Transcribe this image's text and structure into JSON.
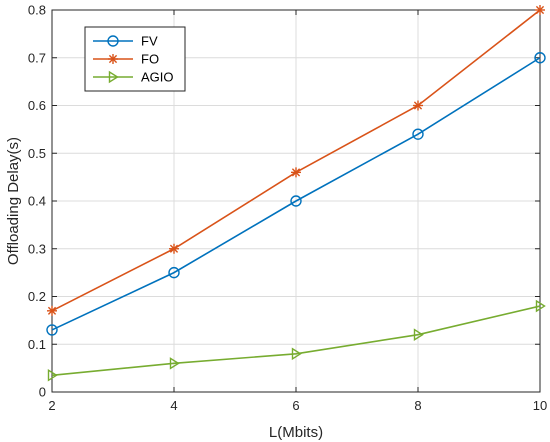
{
  "chart_data": {
    "type": "line",
    "xlabel": "L(Mbits)",
    "ylabel": "Offloading Delay(s)",
    "x": [
      2,
      4,
      6,
      8,
      10
    ],
    "xlim": [
      2,
      10
    ],
    "ylim": [
      0,
      0.8
    ],
    "xticks": [
      "2",
      "4",
      "6",
      "8",
      "10"
    ],
    "yticks": [
      "0",
      "0.1",
      "0.2",
      "0.3",
      "0.4",
      "0.5",
      "0.6",
      "0.7",
      "0.8"
    ],
    "grid": true,
    "legend_position": "top-left",
    "series": [
      {
        "name": "FV",
        "values": [
          0.13,
          0.25,
          0.4,
          0.54,
          0.7
        ],
        "color": "#0072BD",
        "marker": "circle"
      },
      {
        "name": "FO",
        "values": [
          0.17,
          0.3,
          0.46,
          0.6,
          0.8
        ],
        "color": "#D95319",
        "marker": "asterisk"
      },
      {
        "name": "AGIO",
        "values": [
          0.035,
          0.06,
          0.08,
          0.12,
          0.18
        ],
        "color": "#77AC30",
        "marker": "triangle-right"
      }
    ]
  }
}
